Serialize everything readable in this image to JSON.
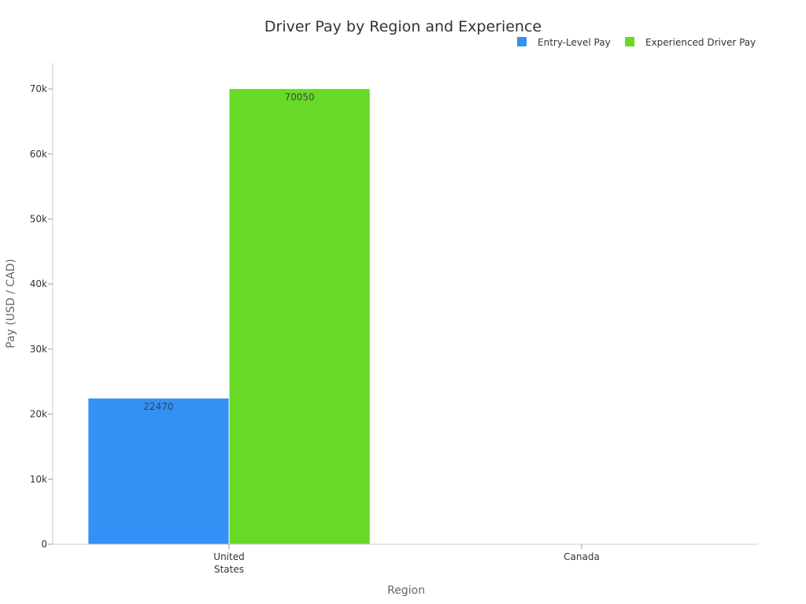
{
  "chart_data": {
    "type": "bar",
    "title": "Driver Pay by Region and Experience",
    "xlabel": "Region",
    "ylabel": "Pay (USD / CAD)",
    "categories": [
      "United States",
      "Canada"
    ],
    "category_lines": [
      [
        "United",
        "States"
      ],
      [
        "Canada"
      ]
    ],
    "series": [
      {
        "name": "Entry-Level Pay",
        "color": "#3291f5",
        "values": [
          22470,
          null
        ]
      },
      {
        "name": "Experienced Driver Pay",
        "color": "#66da27",
        "values": [
          70050,
          null
        ]
      }
    ],
    "ylim": [
      0,
      74000
    ],
    "yticks": [
      0,
      10000,
      20000,
      30000,
      40000,
      50000,
      60000,
      70000
    ],
    "ytick_labels": [
      "0",
      "10k",
      "20k",
      "30k",
      "40k",
      "50k",
      "60k",
      "70k"
    ],
    "legend_position": "top-right",
    "grid": false
  }
}
